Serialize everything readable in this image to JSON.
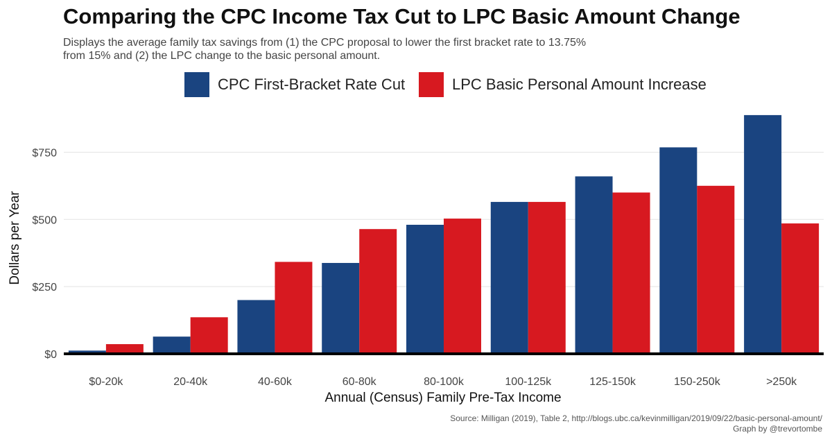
{
  "chart_data": {
    "type": "bar",
    "title": "Comparing the CPC Income Tax Cut to LPC Basic Amount Change",
    "subtitle_lines": [
      "Displays the average family tax savings from (1) the CPC proposal to lower the first bracket rate to 13.75%",
      "from 15% and (2) the LPC change to the basic personal amount."
    ],
    "xlabel": "Annual (Census) Family Pre-Tax Income",
    "ylabel": "Dollars per Year",
    "categories": [
      "$0-20k",
      "20-40k",
      "40-60k",
      "60-80k",
      "80-100k",
      "100-125k",
      "125-150k",
      "150-250k",
      ">250k"
    ],
    "series": [
      {
        "name": "CPC First-Bracket Rate Cut",
        "color": "#1a4480",
        "values": [
          12,
          64,
          200,
          338,
          480,
          565,
          660,
          768,
          888
        ]
      },
      {
        "name": "LPC Basic Personal Amount Increase",
        "color": "#d71920",
        "values": [
          36,
          136,
          342,
          464,
          503,
          565,
          600,
          625,
          485
        ]
      }
    ],
    "y_ticks": [
      0,
      250,
      500,
      750
    ],
    "y_tick_labels": [
      "$0",
      "$250",
      "$500",
      "$750"
    ],
    "ylim": [
      0,
      920
    ],
    "grid": true,
    "legend_position": "top",
    "source_lines": [
      "Source: Milligan (2019), Table 2, http://blogs.ubc.ca/kevinmilligan/2019/09/22/basic-personal-amount/",
      "Graph by @trevortombe"
    ]
  }
}
